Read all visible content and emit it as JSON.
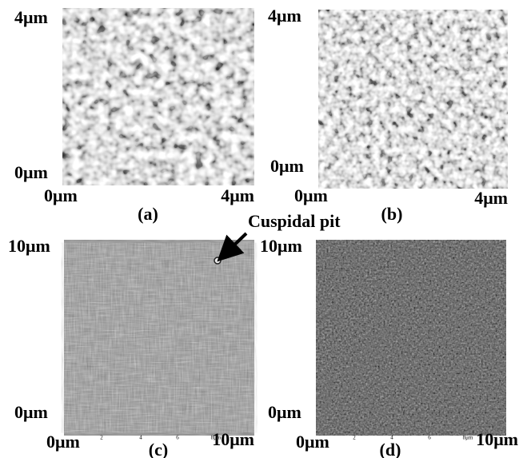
{
  "panels": [
    {
      "y_top": "4μm",
      "y_bottom": "0μm",
      "x_left": "0μm",
      "x_right": "4μm",
      "caption": "(a)",
      "x_ticks": []
    },
    {
      "y_top": "4μm",
      "y_bottom": "0μm",
      "x_left": "0μm",
      "x_right": "4μm",
      "caption": "(b)",
      "x_ticks": []
    },
    {
      "y_top": "10μm",
      "y_bottom": "0μm",
      "x_left": "0μm",
      "x_right": "10μm",
      "caption": "(c)",
      "x_ticks": [
        "2",
        "4",
        "6",
        "8μm"
      ]
    },
    {
      "y_top": "10μm",
      "y_bottom": "0μm",
      "x_left": "0μm",
      "x_right": "10μm",
      "caption": "(d)",
      "x_ticks": [
        "2",
        "4",
        "6",
        "8μm"
      ]
    }
  ],
  "annotation": "Cuspidal pit"
}
